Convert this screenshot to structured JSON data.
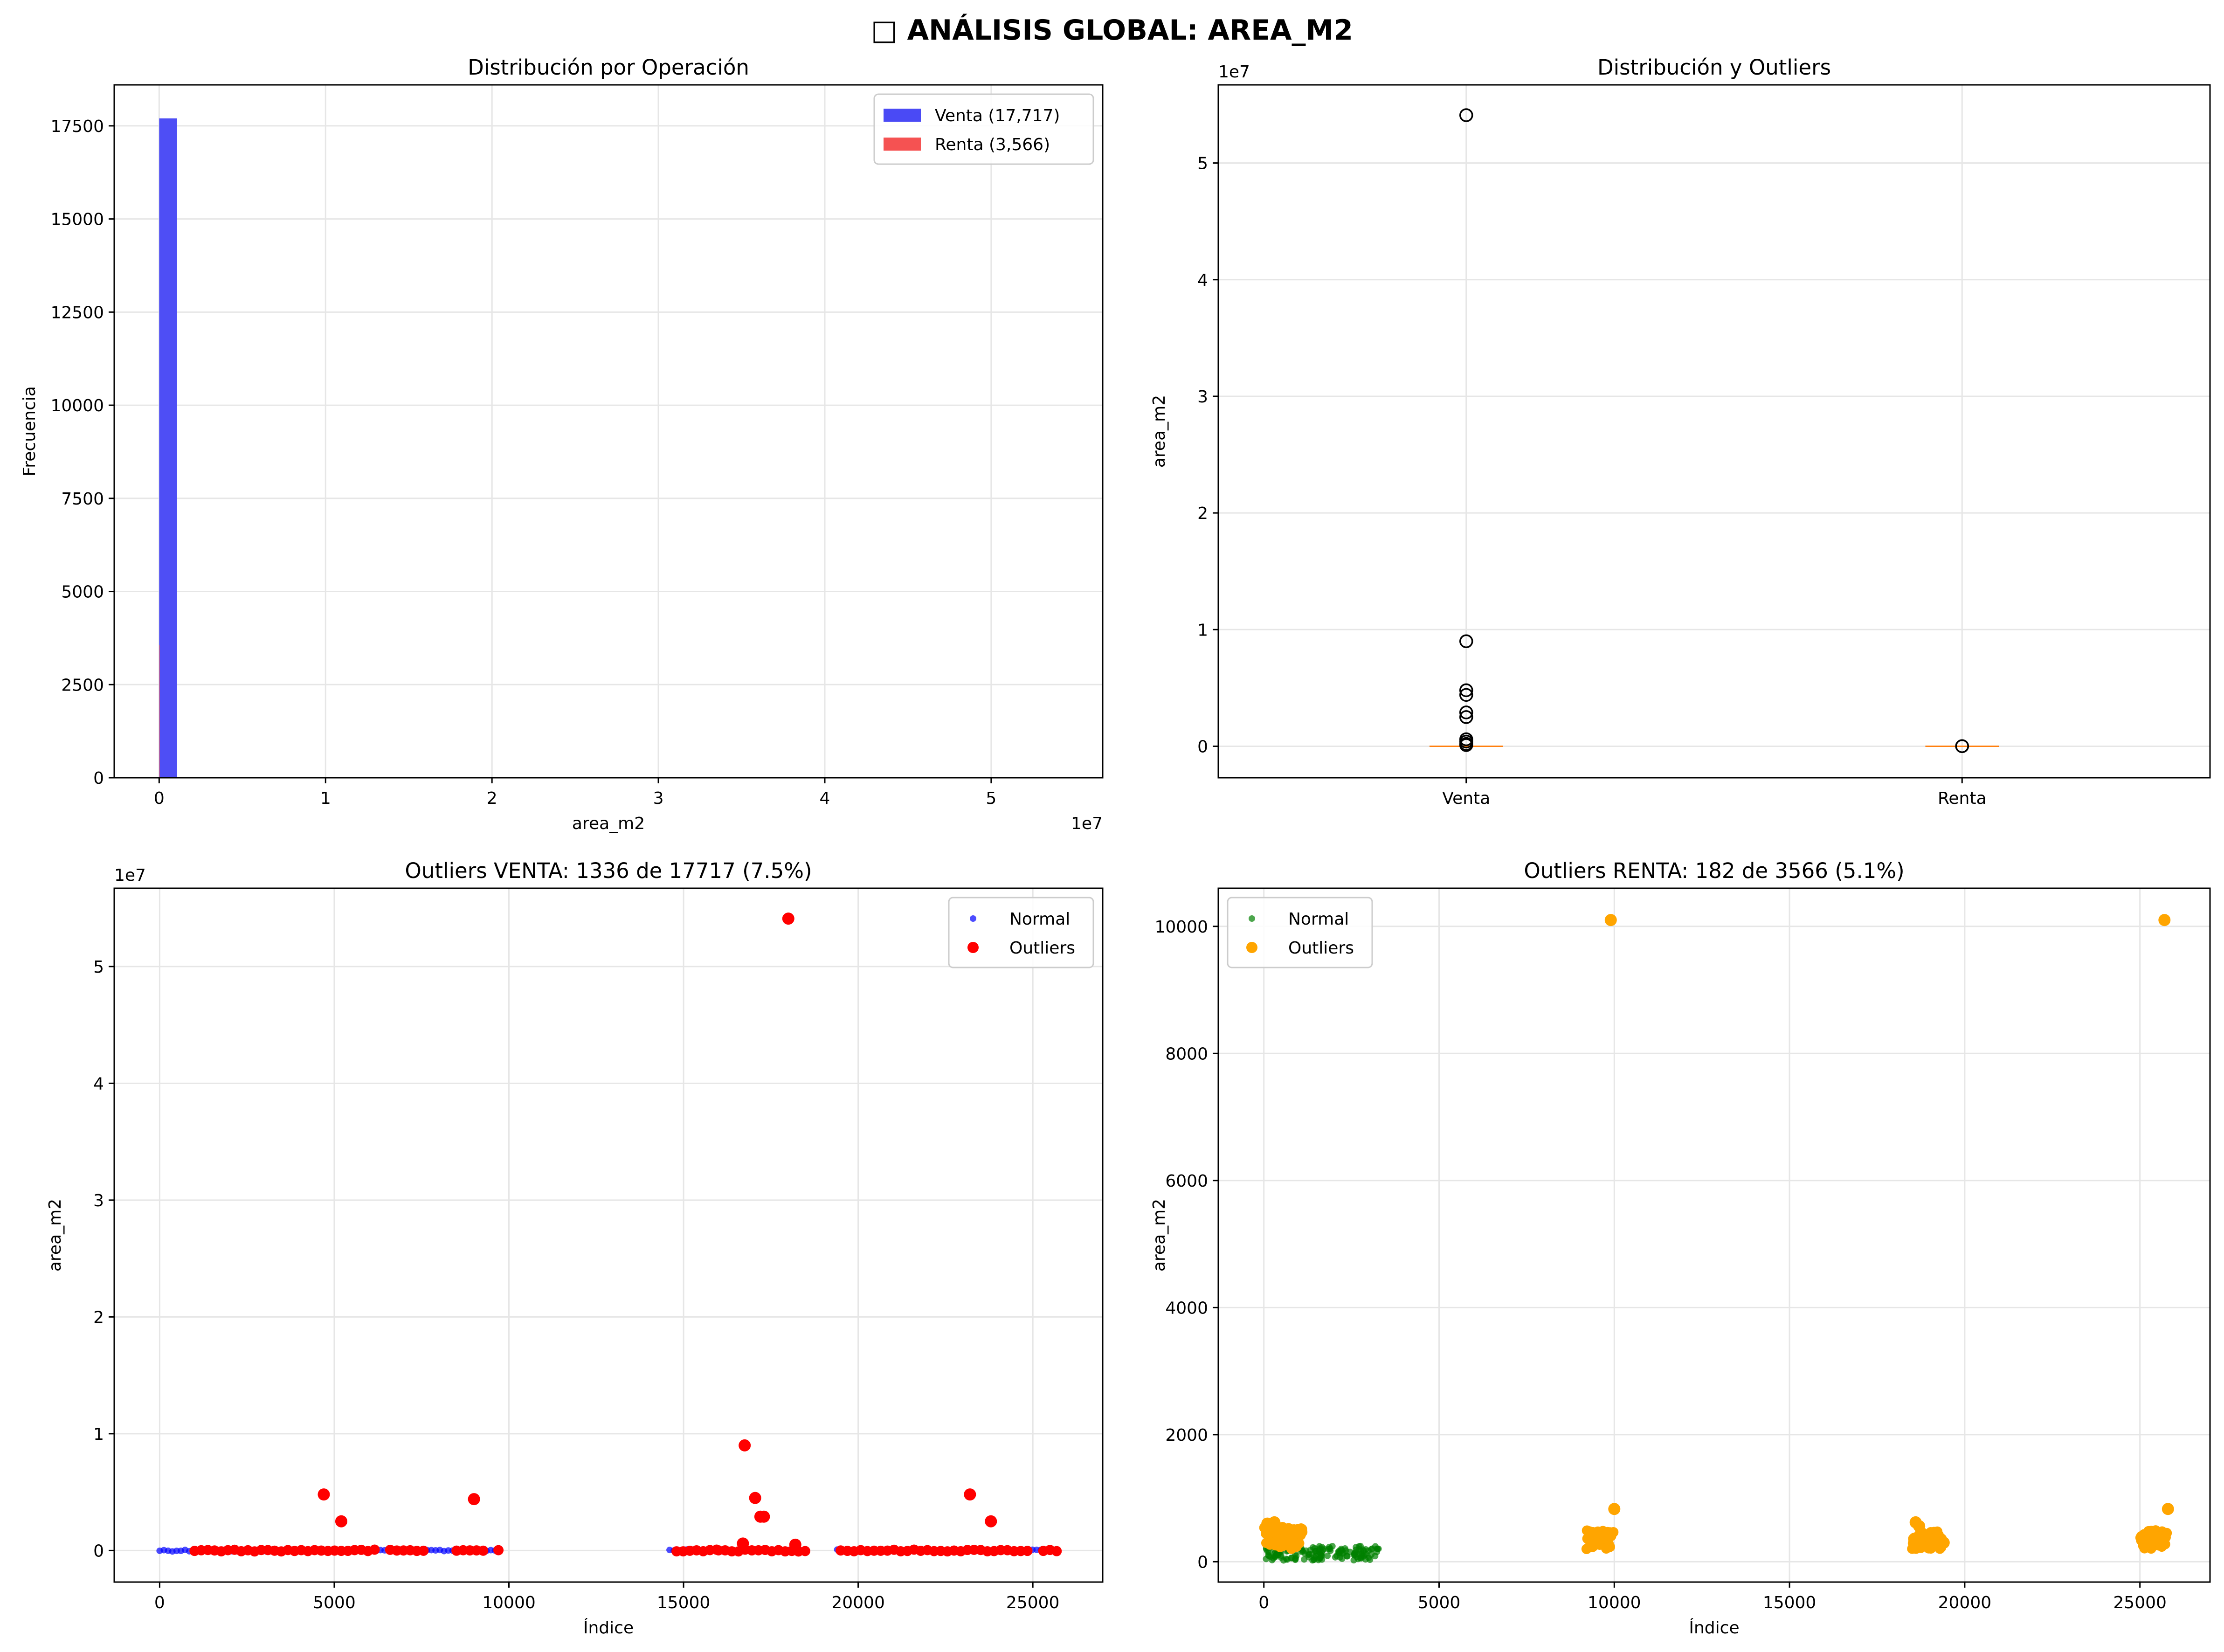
{
  "figure": {
    "title": "□ ANÁLISIS GLOBAL: AREA_M2"
  },
  "chart_data": [
    {
      "type": "bar",
      "title": "Distribución por Operación",
      "xlabel": "area_m2",
      "ylabel": "Frecuencia",
      "x_offset_text": "1e7",
      "xlim": [
        -0.27,
        5.67
      ],
      "ylim": [
        0,
        18600
      ],
      "xticks": [
        0,
        1,
        2,
        3,
        4,
        5
      ],
      "xtick_labels": [
        "0",
        "1",
        "2",
        "3",
        "4",
        "5"
      ],
      "yticks": [
        0,
        2500,
        5000,
        7500,
        10000,
        12500,
        15000,
        17500
      ],
      "ytick_labels": [
        "0",
        "2500",
        "5000",
        "7500",
        "10000",
        "12500",
        "15000",
        "17500"
      ],
      "grid": true,
      "legend": "top-right",
      "series": [
        {
          "name": "Venta (17,717)",
          "color": "#4a4af5",
          "bins": [
            {
              "x0": 0.0,
              "x1": 0.108,
              "count": 17700
            }
          ]
        },
        {
          "name": "Renta (3,566)",
          "color": "#f55252",
          "bins": [
            {
              "x0": 0.0,
              "x1": 0.0002,
              "count": 3566
            }
          ]
        }
      ]
    },
    {
      "type": "box",
      "title": "Distribución y Outliers",
      "ylabel": "area_m2",
      "y_offset_text": "1e7",
      "categories": [
        "Venta",
        "Renta"
      ],
      "xlim": [
        0.5,
        2.5
      ],
      "ylim": [
        -0.27,
        5.67
      ],
      "yticks": [
        0,
        1,
        2,
        3,
        4,
        5
      ],
      "ytick_labels": [
        "0",
        "1",
        "2",
        "3",
        "4",
        "5"
      ],
      "grid": true,
      "median_color": "#ff7f0e",
      "boxes": [
        {
          "category": "Venta",
          "median": 0.0,
          "q1": 0.0,
          "q3": 0.0,
          "fliers": [
            5.41,
            0.9,
            0.48,
            0.44,
            0.29,
            0.25,
            0.06,
            0.04,
            0.02,
            0.01
          ]
        },
        {
          "category": "Renta",
          "median": 0.0,
          "q1": 0.0,
          "q3": 0.0,
          "fliers": [
            0.001,
            0.0005
          ]
        }
      ]
    },
    {
      "type": "scatter",
      "title": "Outliers VENTA: 1336 de 17717 (7.5%)",
      "xlabel": "Índice",
      "ylabel": "area_m2",
      "y_offset_text": "1e7",
      "xlim": [
        -1300,
        27000
      ],
      "ylim": [
        -0.27,
        5.67
      ],
      "xticks": [
        0,
        5000,
        10000,
        15000,
        20000,
        25000
      ],
      "xtick_labels": [
        "0",
        "5000",
        "10000",
        "15000",
        "20000",
        "25000"
      ],
      "yticks": [
        0,
        1,
        2,
        3,
        4,
        5
      ],
      "ytick_labels": [
        "0",
        "1",
        "2",
        "3",
        "4",
        "5"
      ],
      "grid": true,
      "legend": "top-right",
      "series": [
        {
          "name": "Normal",
          "color": "#0000ff",
          "marker_size": "small",
          "bands": [
            [
              0,
              1100
            ],
            [
              1100,
              6200
            ],
            [
              6200,
              9800
            ],
            [
              14600,
              18400
            ],
            [
              19400,
              25600
            ]
          ],
          "band_y": 0.0,
          "points": []
        },
        {
          "name": "Outliers",
          "color": "#ff0000",
          "marker_size": "large",
          "bands": [
            [
              1000,
              6200
            ],
            [
              6600,
              7600
            ],
            [
              8500,
              9300
            ],
            [
              9700,
              9800
            ],
            [
              14800,
              16000
            ],
            [
              16000,
              18500
            ],
            [
              19500,
              25000
            ],
            [
              25300,
              25700
            ]
          ],
          "band_y": 0.0,
          "points": [
            {
              "x": 18000,
              "y": 5.41
            },
            {
              "x": 16750,
              "y": 0.9
            },
            {
              "x": 4700,
              "y": 0.48
            },
            {
              "x": 23200,
              "y": 0.48
            },
            {
              "x": 17050,
              "y": 0.45
            },
            {
              "x": 9000,
              "y": 0.44
            },
            {
              "x": 17200,
              "y": 0.29
            },
            {
              "x": 17300,
              "y": 0.29
            },
            {
              "x": 5200,
              "y": 0.25
            },
            {
              "x": 23800,
              "y": 0.25
            },
            {
              "x": 16700,
              "y": 0.06
            },
            {
              "x": 18200,
              "y": 0.05
            }
          ]
        }
      ]
    },
    {
      "type": "scatter",
      "title": "Outliers RENTA: 182 de 3566 (5.1%)",
      "xlabel": "Índice",
      "ylabel": "area_m2",
      "xlim": [
        -1300,
        27000
      ],
      "ylim": [
        -320,
        10600
      ],
      "xticks": [
        0,
        5000,
        10000,
        15000,
        20000,
        25000
      ],
      "xtick_labels": [
        "0",
        "5000",
        "10000",
        "15000",
        "20000",
        "25000"
      ],
      "yticks": [
        0,
        2000,
        4000,
        6000,
        8000,
        10000
      ],
      "ytick_labels": [
        "0",
        "2000",
        "4000",
        "6000",
        "8000",
        "10000"
      ],
      "grid": true,
      "legend": "top-left",
      "series": [
        {
          "name": "Normal",
          "color": "#008000",
          "marker_size": "small",
          "clusters": [
            {
              "x0": 50,
              "x1": 3300,
              "y0": 20,
              "y1": 250
            }
          ],
          "points": []
        },
        {
          "name": "Outliers",
          "color": "#ffa500",
          "marker_size": "large",
          "clusters": [
            {
              "x0": 0,
              "x1": 1100,
              "y0": 200,
              "y1": 550
            },
            {
              "x0": 9200,
              "x1": 10000,
              "y0": 200,
              "y1": 500
            },
            {
              "x0": 18500,
              "x1": 19400,
              "y0": 200,
              "y1": 500
            },
            {
              "x0": 25000,
              "x1": 25800,
              "y0": 200,
              "y1": 500
            }
          ],
          "points": [
            {
              "x": 9900,
              "y": 10100
            },
            {
              "x": 25700,
              "y": 10100
            },
            {
              "x": 10000,
              "y": 830
            },
            {
              "x": 25800,
              "y": 830
            },
            {
              "x": 100,
              "y": 600
            },
            {
              "x": 300,
              "y": 620
            },
            {
              "x": 18600,
              "y": 620
            },
            {
              "x": 18700,
              "y": 560
            },
            {
              "x": 19400,
              "y": 300
            }
          ]
        }
      ]
    }
  ]
}
